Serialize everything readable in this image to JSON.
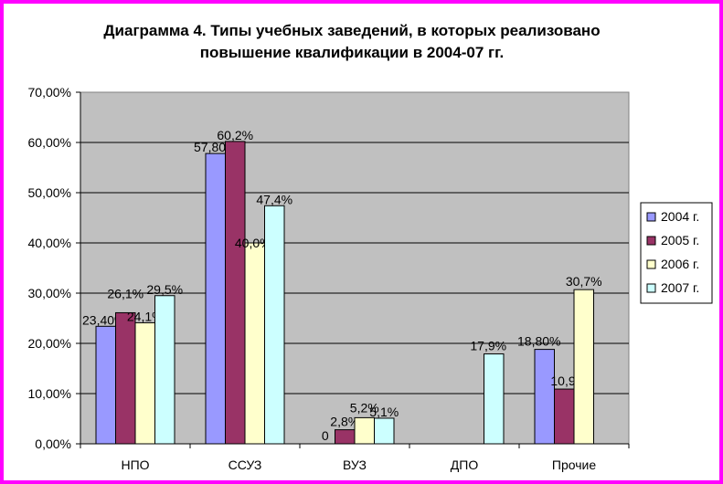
{
  "chart_data": {
    "type": "bar",
    "title_line1": "Диаграмма 4. Типы учебных заведений, в которых реализовано",
    "title_line2": "повышение квалификации в 2004-07 гг.",
    "categories": [
      "НПО",
      "ССУЗ",
      "ВУЗ",
      "ДПО",
      "Прочие"
    ],
    "ylim": [
      0,
      70
    ],
    "yticks": [
      "0,00%",
      "10,00%",
      "20,00%",
      "30,00%",
      "40,00%",
      "50,00%",
      "60,00%",
      "70,00%"
    ],
    "grid": true,
    "legend_position": "right",
    "series": [
      {
        "name": "2004 г.",
        "color": "#9999ff",
        "values": [
          23.4,
          57.8,
          0,
          0,
          18.8
        ],
        "labels": [
          "23,40%",
          "57,80%",
          "0",
          "",
          "18,80%"
        ]
      },
      {
        "name": "2005 г.",
        "color": "#993366",
        "values": [
          26.1,
          60.2,
          2.8,
          0,
          10.9
        ],
        "labels": [
          "26,1%",
          "60,2%",
          "2,8%",
          "",
          "10,9%"
        ]
      },
      {
        "name": "2006 г.",
        "color": "#ffffcc",
        "values": [
          24.1,
          40.0,
          5.2,
          0,
          30.7
        ],
        "labels": [
          "24,1%",
          "40,0%",
          "5,2%",
          "",
          "30,7%"
        ]
      },
      {
        "name": "2007 г.",
        "color": "#ccffff",
        "values": [
          29.5,
          47.4,
          5.1,
          17.9,
          0
        ],
        "labels": [
          "29,5%",
          "47,4%",
          "5,1%",
          "17,9%",
          ""
        ]
      }
    ]
  },
  "colors": {
    "border": "#ff00ff",
    "plot_background": "#c0c0c0"
  }
}
